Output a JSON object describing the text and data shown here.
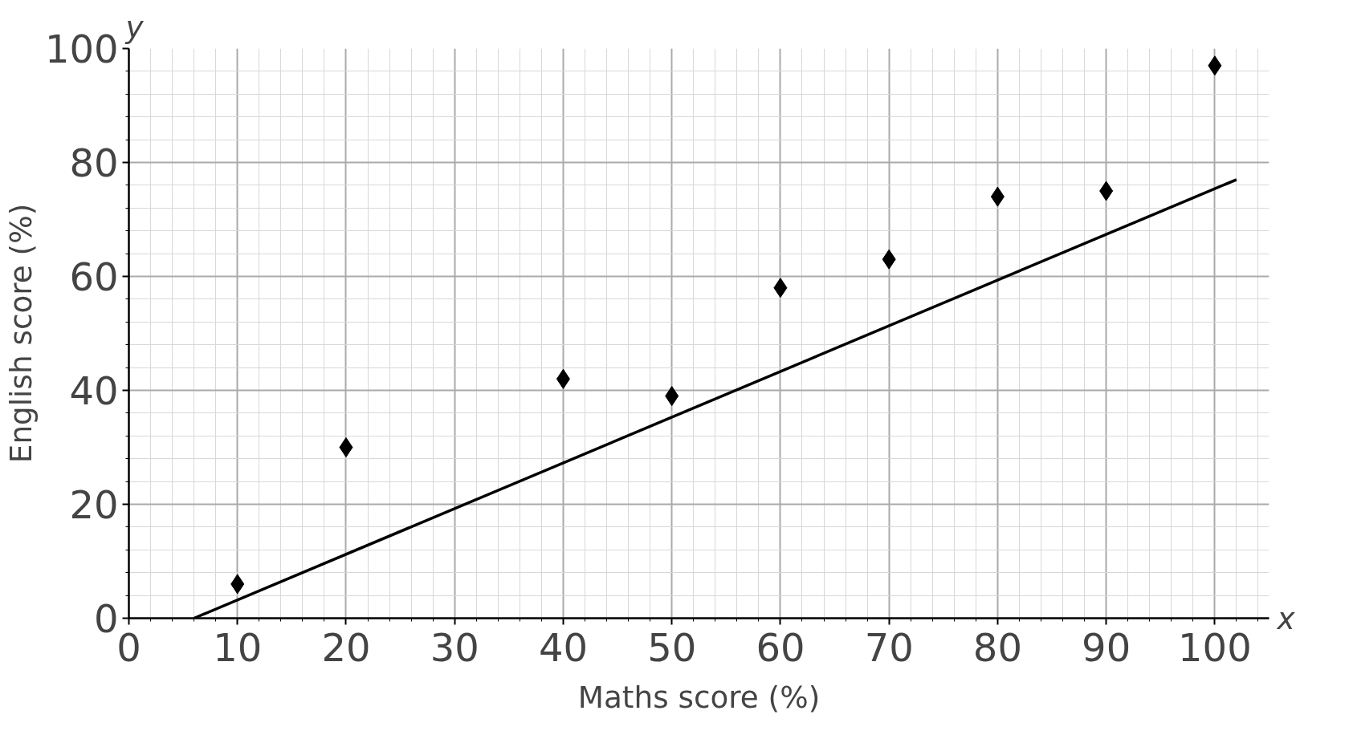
{
  "chart_data": {
    "type": "scatter",
    "xlabel": "Maths score (%)",
    "ylabel": "English score (%)",
    "annotations": [
      "x",
      "y"
    ],
    "x": [
      10,
      20,
      40,
      50,
      60,
      70,
      80,
      90,
      100
    ],
    "series": [
      {
        "color": "#000000",
        "marker": "diamond",
        "values": [
          6,
          30,
          42,
          39,
          58,
          63,
          74,
          75,
          97
        ]
      },
      {
        "type": "line",
        "color": "#000000",
        "x": [
          6,
          102
        ],
        "values": [
          0,
          77
        ],
        "marker": "none",
        "line_style": "solid"
      }
    ],
    "xlim": [
      0,
      105
    ],
    "ylim": [
      0,
      100
    ],
    "xticks": [
      0,
      10,
      20,
      30,
      40,
      50,
      60,
      70,
      80,
      90,
      100
    ],
    "yticks": [
      0,
      20,
      40,
      60,
      80,
      100
    ],
    "grid": true
  }
}
